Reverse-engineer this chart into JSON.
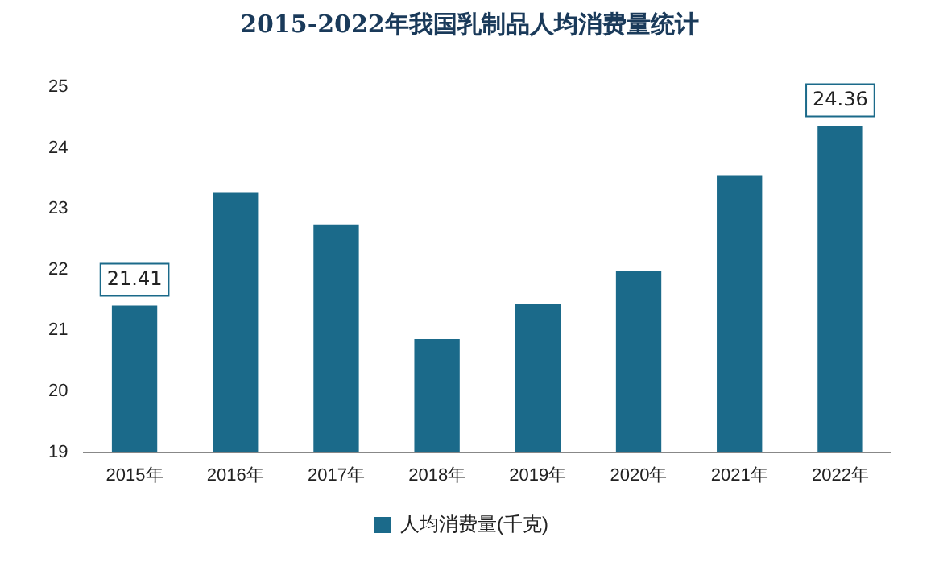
{
  "chart_data": {
    "type": "bar",
    "title": "2015-2022年我国乳制品人均消费量统计",
    "categories": [
      "2015年",
      "2016年",
      "2017年",
      "2018年",
      "2019年",
      "2020年",
      "2021年",
      "2022年"
    ],
    "series": [
      {
        "name": "人均消费量(千克)",
        "color": "#1b6a8a",
        "values": [
          21.41,
          23.26,
          22.74,
          20.86,
          21.43,
          21.98,
          23.55,
          24.36
        ],
        "value_labels": [
          "21.41",
          null,
          null,
          null,
          null,
          null,
          null,
          "24.36"
        ]
      }
    ],
    "ylim": [
      19,
      25
    ],
    "yticks": [
      19,
      20,
      21,
      22,
      23,
      24,
      25
    ],
    "grid": false,
    "legend": "bottom"
  }
}
